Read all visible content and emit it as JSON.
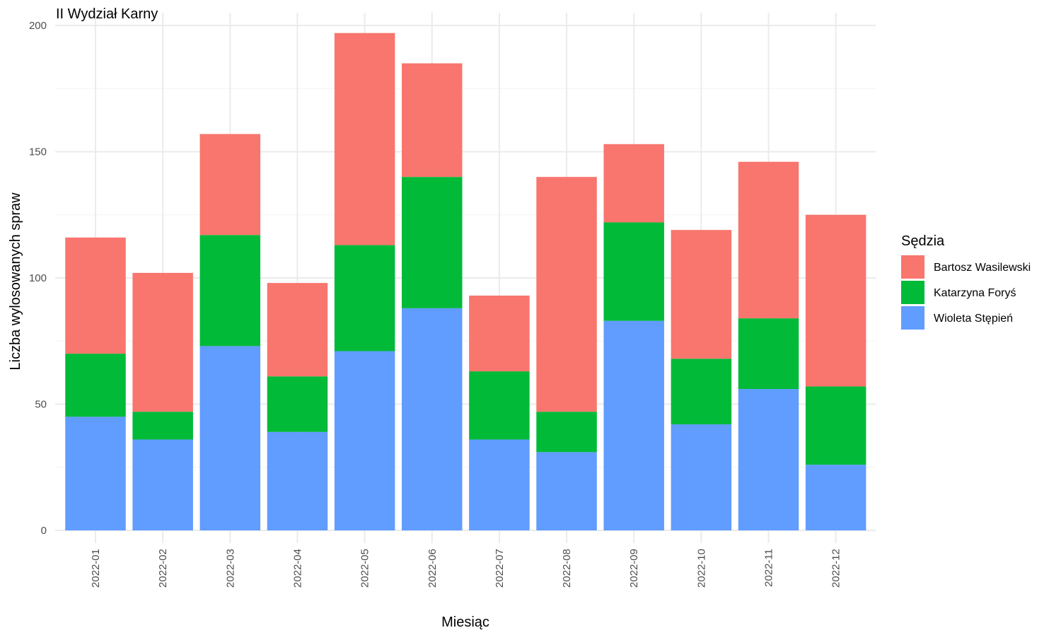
{
  "chart_data": {
    "type": "bar",
    "stacked": true,
    "title": "II Wydział Karny",
    "xlabel": "Miesiąc",
    "ylabel": "Liczba wylosowanych spraw",
    "ylim": [
      0,
      200
    ],
    "yticks": [
      0,
      50,
      100,
      150,
      200
    ],
    "grid": true,
    "legend_title": "Sędzia",
    "legend_position": "right",
    "categories": [
      "2022-01",
      "2022-02",
      "2022-03",
      "2022-04",
      "2022-05",
      "2022-06",
      "2022-07",
      "2022-08",
      "2022-09",
      "2022-10",
      "2022-11",
      "2022-12"
    ],
    "series": [
      {
        "name": "Wioleta Stępień",
        "color": "#619CFF",
        "values": [
          45,
          36,
          73,
          39,
          71,
          88,
          36,
          31,
          83,
          42,
          56,
          26
        ]
      },
      {
        "name": "Katarzyna Foryś",
        "color": "#00BA38",
        "values": [
          25,
          11,
          44,
          22,
          42,
          52,
          27,
          16,
          39,
          26,
          28,
          31
        ]
      },
      {
        "name": "Bartosz Wasilewski",
        "color": "#F8766D",
        "values": [
          46,
          55,
          40,
          37,
          84,
          45,
          30,
          93,
          31,
          51,
          62,
          68
        ]
      }
    ],
    "legend_order": [
      "Bartosz Wasilewski",
      "Katarzyna Foryś",
      "Wioleta Stępień"
    ]
  }
}
